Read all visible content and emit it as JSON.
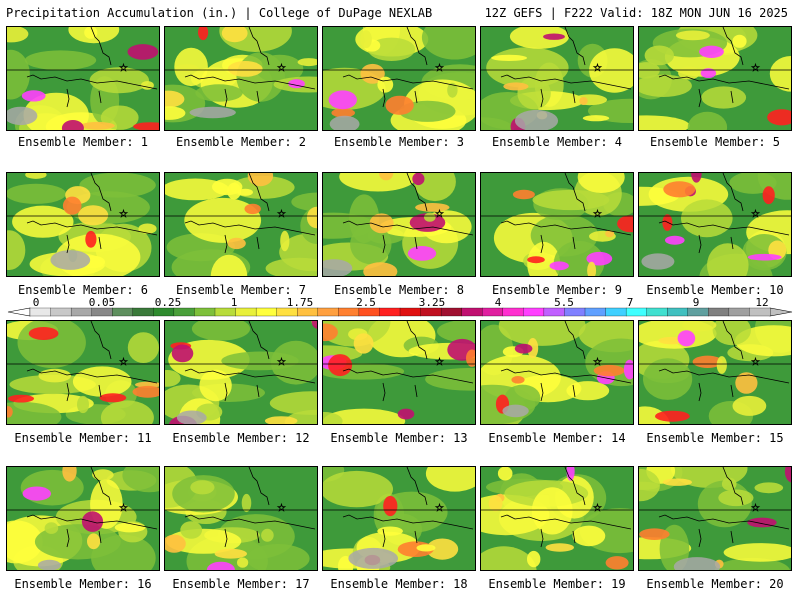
{
  "header": {
    "left": "Precipitation Accumulation (in.) | College of DuPage NEXLAB",
    "right": "12Z GEFS | F222 Valid: 18Z MON JUN 16 2025"
  },
  "members": [
    {
      "label": "Ensemble Member: 1"
    },
    {
      "label": "Ensemble Member: 2"
    },
    {
      "label": "Ensemble Member: 3"
    },
    {
      "label": "Ensemble Member: 4"
    },
    {
      "label": "Ensemble Member: 5"
    },
    {
      "label": "Ensemble Member: 6"
    },
    {
      "label": "Ensemble Member: 7"
    },
    {
      "label": "Ensemble Member: 8"
    },
    {
      "label": "Ensemble Member: 9"
    },
    {
      "label": "Ensemble Member: 10"
    },
    {
      "label": "Ensemble Member: 11"
    },
    {
      "label": "Ensemble Member: 12"
    },
    {
      "label": "Ensemble Member: 13"
    },
    {
      "label": "Ensemble Member: 14"
    },
    {
      "label": "Ensemble Member: 15"
    },
    {
      "label": "Ensemble Member: 16"
    },
    {
      "label": "Ensemble Member: 17"
    },
    {
      "label": "Ensemble Member: 18"
    },
    {
      "label": "Ensemble Member: 19"
    },
    {
      "label": "Ensemble Member: 20"
    }
  ],
  "colorbar": {
    "labels": [
      "0",
      "0.05",
      "0.25",
      "1",
      "1.75",
      "2.5",
      "3.25",
      "4",
      "5.5",
      "7",
      "9",
      "12"
    ],
    "colors": [
      "#e8e8e8",
      "#c8c8c8",
      "#a8a8a8",
      "#888888",
      "#5e8f5e",
      "#3a7a3a",
      "#2e8b2e",
      "#4aa03a",
      "#7ec03a",
      "#b8dc3a",
      "#e8f03a",
      "#ffff3c",
      "#ffe040",
      "#ffc040",
      "#ffa040",
      "#ff8030",
      "#ff5020",
      "#ff2020",
      "#e01010",
      "#c01020",
      "#a01030",
      "#c01070",
      "#e020a0",
      "#ff30d0",
      "#ff40ff",
      "#c060ff",
      "#8080ff",
      "#60a0ff",
      "#40d0ff",
      "#40ffff",
      "#40e0d0",
      "#40c0c0",
      "#60a0a0",
      "#808080",
      "#a0a0a0",
      "#c0c0c0"
    ]
  }
}
